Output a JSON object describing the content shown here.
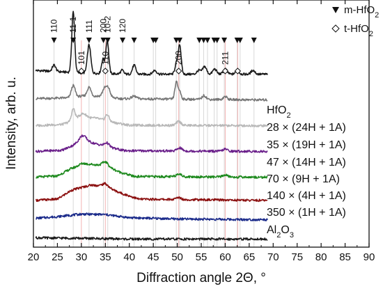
{
  "chart_data": {
    "type": "line",
    "xlabel": "Diffraction angle 2Θ, °",
    "ylabel": "Intensity, arb. u.",
    "xlim": [
      20,
      90
    ],
    "xticks": [
      20,
      25,
      30,
      35,
      40,
      45,
      50,
      55,
      60,
      65,
      70,
      75,
      80,
      85,
      90
    ],
    "legend": [
      {
        "marker": "filled-triangle-down",
        "label": "m-HfO2",
        "label_main": "m-HfO",
        "label_sub": "2"
      },
      {
        "marker": "open-diamond",
        "label": "t-HfO2",
        "label_main": "t-HfO",
        "label_sub": "2"
      }
    ],
    "m_hfo2_peaks": [
      {
        "x": 24.3,
        "hkl": "110"
      },
      {
        "x": 28.3,
        "hkl": "11-1"
      },
      {
        "x": 31.6,
        "hkl": "111"
      },
      {
        "x": 34.6,
        "hkl": "200"
      },
      {
        "x": 35.5,
        "hkl": "10-2"
      },
      {
        "x": 38.6,
        "hkl": "120"
      },
      {
        "x": 41.0,
        "hkl": ""
      },
      {
        "x": 45.0,
        "hkl": ""
      },
      {
        "x": 45.5,
        "hkl": ""
      },
      {
        "x": 49.8,
        "hkl": ""
      },
      {
        "x": 50.5,
        "hkl": ""
      },
      {
        "x": 54.6,
        "hkl": ""
      },
      {
        "x": 55.5,
        "hkl": ""
      },
      {
        "x": 56.3,
        "hkl": ""
      },
      {
        "x": 57.7,
        "hkl": ""
      },
      {
        "x": 58.3,
        "hkl": ""
      },
      {
        "x": 59.8,
        "hkl": ""
      },
      {
        "x": 62.5,
        "hkl": ""
      },
      {
        "x": 63.1,
        "hkl": ""
      },
      {
        "x": 66.0,
        "hkl": ""
      }
    ],
    "t_hfo2_peaks": [
      {
        "x": 30.0,
        "hkl": "101"
      },
      {
        "x": 35.0,
        "hkl": "110"
      },
      {
        "x": 50.3,
        "hkl": "200"
      },
      {
        "x": 60.0,
        "hkl": "211"
      },
      {
        "x": 62.6,
        "hkl": ""
      }
    ],
    "series": [
      {
        "name": "HfO2",
        "label_main": "HfO",
        "label_sub": "2",
        "color": "#1a1a1a",
        "offset": 6.2,
        "noise": 0.05,
        "background": [
          [
            20,
            0.15
          ],
          [
            30,
            0.05
          ],
          [
            40,
            0.0
          ],
          [
            60,
            0.0
          ],
          [
            69,
            0.0
          ]
        ],
        "peaks": [
          [
            24.3,
            0.25,
            0.35
          ],
          [
            28.3,
            2.35,
            0.3
          ],
          [
            31.6,
            1.1,
            0.35
          ],
          [
            34.5,
            0.55,
            0.3
          ],
          [
            35.4,
            1.3,
            0.3
          ],
          [
            38.5,
            0.15,
            0.3
          ],
          [
            41.0,
            0.35,
            0.35
          ],
          [
            45.3,
            0.15,
            0.4
          ],
          [
            49.8,
            0.4,
            0.3
          ],
          [
            50.5,
            1.15,
            0.3
          ],
          [
            54.5,
            0.15,
            0.4
          ],
          [
            55.7,
            0.3,
            0.4
          ],
          [
            57.8,
            0.2,
            0.4
          ],
          [
            60.0,
            0.2,
            0.4
          ],
          [
            62.5,
            0.12,
            0.4
          ],
          [
            65.8,
            0.15,
            0.4
          ]
        ]
      },
      {
        "name": "28 × (24H + 1A)",
        "color": "#777777",
        "offset": 5.2,
        "noise": 0.05,
        "background": [
          [
            20,
            0.05
          ],
          [
            27,
            0.08
          ],
          [
            30,
            0.15
          ],
          [
            34,
            0.15
          ],
          [
            38,
            0.05
          ],
          [
            69,
            0.0
          ]
        ],
        "peaks": [
          [
            28.3,
            0.45,
            0.4
          ],
          [
            31.6,
            0.35,
            0.4
          ],
          [
            34.8,
            0.3,
            0.4
          ],
          [
            35.6,
            0.35,
            0.4
          ],
          [
            41.0,
            0.1,
            0.5
          ],
          [
            49.8,
            0.65,
            0.3
          ],
          [
            50.5,
            0.3,
            0.3
          ],
          [
            55.6,
            0.15,
            0.4
          ],
          [
            60.0,
            0.12,
            0.4
          ]
        ]
      },
      {
        "name": "35 × (19H + 1A)",
        "color": "#b8b8b8",
        "offset": 4.2,
        "noise": 0.05,
        "background": [
          [
            20,
            0.0
          ],
          [
            26,
            0.05
          ],
          [
            29,
            0.25
          ],
          [
            33,
            0.3
          ],
          [
            36,
            0.15
          ],
          [
            40,
            0.02
          ],
          [
            69,
            0.0
          ]
        ],
        "peaks": [
          [
            28.3,
            0.45,
            0.35
          ],
          [
            30.3,
            0.2,
            0.8
          ],
          [
            35.4,
            0.25,
            0.4
          ],
          [
            50.3,
            0.15,
            0.5
          ]
        ]
      },
      {
        "name": "47 × (14H + 1A)",
        "color": "#6a1f8a",
        "offset": 3.2,
        "noise": 0.05,
        "background": [
          [
            20,
            0.0
          ],
          [
            26,
            0.05
          ],
          [
            29,
            0.3
          ],
          [
            31,
            0.4
          ],
          [
            35,
            0.2
          ],
          [
            39,
            0.03
          ],
          [
            69,
            0.0
          ]
        ],
        "peaks": [
          [
            30.2,
            0.25,
            0.7
          ],
          [
            35.3,
            0.15,
            0.5
          ],
          [
            50.5,
            0.12,
            0.5
          ],
          [
            60.0,
            0.08,
            0.5
          ]
        ]
      },
      {
        "name": "70 × (9H + 1A)",
        "color": "#1e8a1e",
        "offset": 2.2,
        "noise": 0.05,
        "background": [
          [
            20,
            0.0
          ],
          [
            25,
            0.05
          ],
          [
            28,
            0.35
          ],
          [
            32,
            0.5
          ],
          [
            35,
            0.45
          ],
          [
            38,
            0.2
          ],
          [
            41,
            0.03
          ],
          [
            69,
            0.0
          ]
        ],
        "peaks": [
          [
            30.2,
            0.1,
            0.8
          ],
          [
            35.0,
            0.15,
            0.6
          ],
          [
            50.3,
            0.12,
            0.5
          ],
          [
            60.0,
            0.08,
            0.5
          ]
        ]
      },
      {
        "name": "140 × (4H + 1A)",
        "color": "#8b0f0f",
        "offset": 1.3,
        "noise": 0.05,
        "background": [
          [
            20,
            0.0
          ],
          [
            25,
            0.05
          ],
          [
            28,
            0.4
          ],
          [
            32,
            0.6
          ],
          [
            35,
            0.55
          ],
          [
            38,
            0.3
          ],
          [
            42,
            0.05
          ],
          [
            69,
            0.0
          ]
        ],
        "peaks": [
          [
            35.0,
            0.1,
            0.6
          ],
          [
            50.3,
            0.08,
            0.5
          ]
        ]
      },
      {
        "name": "350 × (1H + 1A)",
        "color": "#1a2a8a",
        "offset": 0.55,
        "noise": 0.05,
        "background": [
          [
            20,
            0.05
          ],
          [
            25,
            0.12
          ],
          [
            30,
            0.22
          ],
          [
            35,
            0.2
          ],
          [
            40,
            0.08
          ],
          [
            50,
            0.03
          ],
          [
            69,
            0.0
          ]
        ],
        "peaks": []
      },
      {
        "name": "Al2O3",
        "label_main": "Al",
        "label_sub": "2",
        "label_main2": "O",
        "label_sub2": "3",
        "color": "#1a1a1a",
        "offset": -0.2,
        "noise": 0.05,
        "background": [
          [
            20,
            0.05
          ],
          [
            30,
            0.03
          ],
          [
            40,
            0.0
          ],
          [
            69,
            0.0
          ]
        ],
        "peaks": []
      }
    ]
  }
}
